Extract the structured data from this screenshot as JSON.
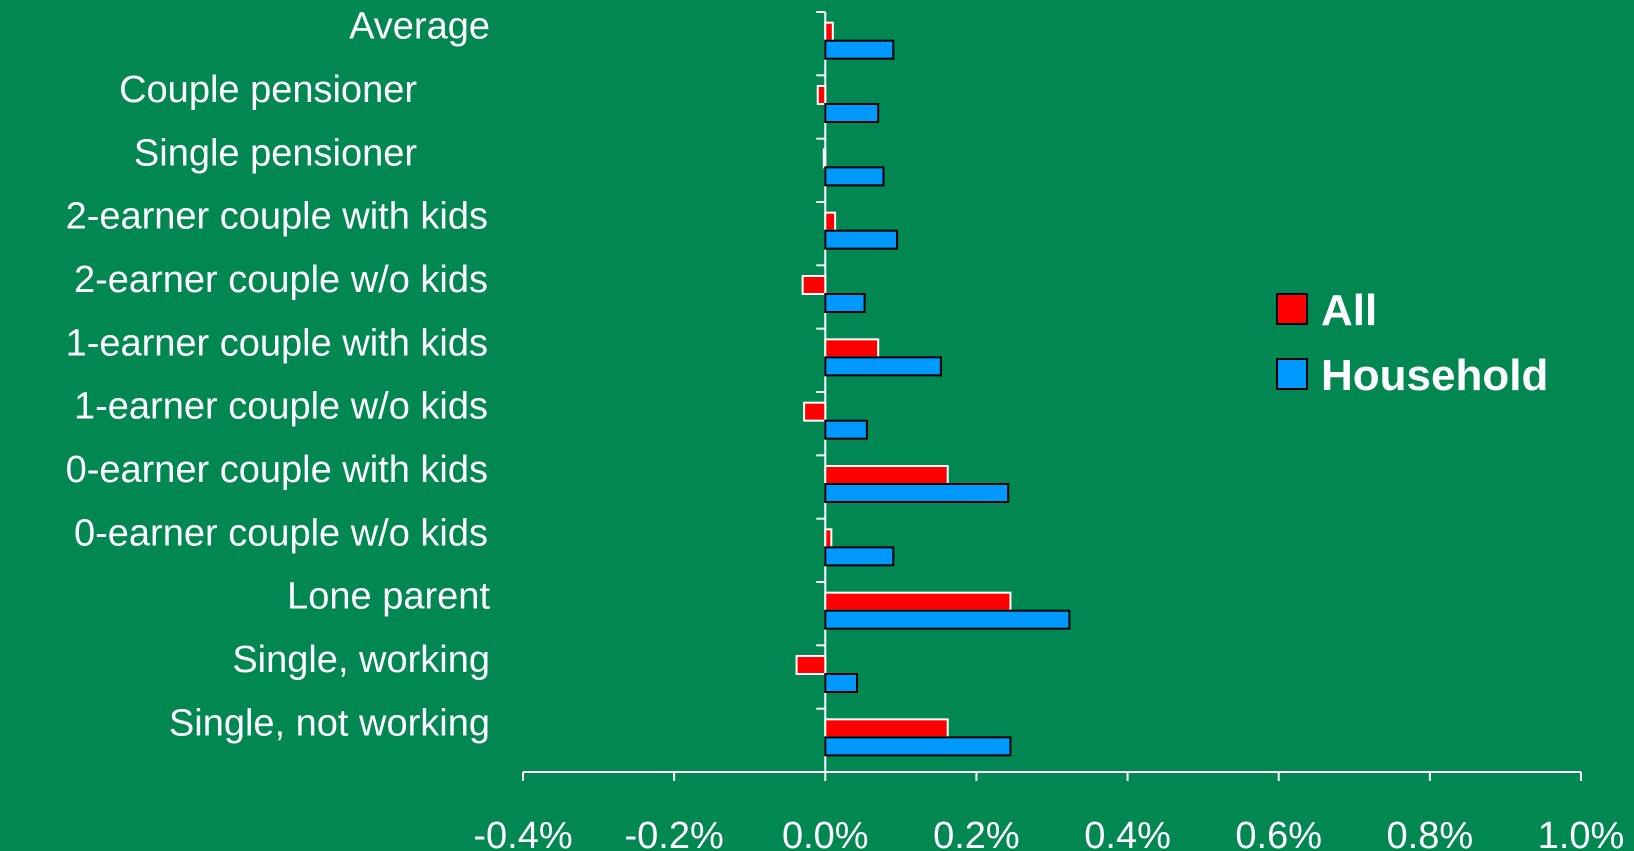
{
  "chart_data": {
    "type": "bar",
    "orientation": "horizontal",
    "categories": [
      "Average",
      "Couple pensioner",
      "Single pensioner",
      "2-earner couple with kids",
      "2-earner couple w/o kids",
      "1-earner couple with kids",
      "1-earner couple w/o kids",
      "0-earner couple with kids",
      "0-earner couple w/o kids",
      "Lone parent",
      "Single, working",
      "Single, not working"
    ],
    "series": [
      {
        "name": "All",
        "color": "#ff0000",
        "values": [
          0.01,
          -0.01,
          -0.002,
          0.013,
          -0.03,
          0.07,
          -0.028,
          0.162,
          0.008,
          0.245,
          -0.038,
          0.162
        ]
      },
      {
        "name": "Household",
        "color": "#0099ff",
        "values": [
          0.09,
          0.07,
          0.077,
          0.095,
          0.052,
          0.153,
          0.055,
          0.242,
          0.09,
          0.323,
          0.042,
          0.245
        ]
      }
    ],
    "xlim": [
      -0.4,
      1.0
    ],
    "xticks": [
      "-0.4%",
      "-0.2%",
      "0.0%",
      "0.2%",
      "0.4%",
      "0.6%",
      "0.8%",
      "1.0%"
    ],
    "tick_values": [
      -0.4,
      -0.2,
      0.0,
      0.2,
      0.4,
      0.6,
      0.8,
      1.0
    ],
    "legend": {
      "position": "right",
      "items": [
        "All",
        "Household"
      ]
    },
    "background": "#008752",
    "grid": false
  }
}
